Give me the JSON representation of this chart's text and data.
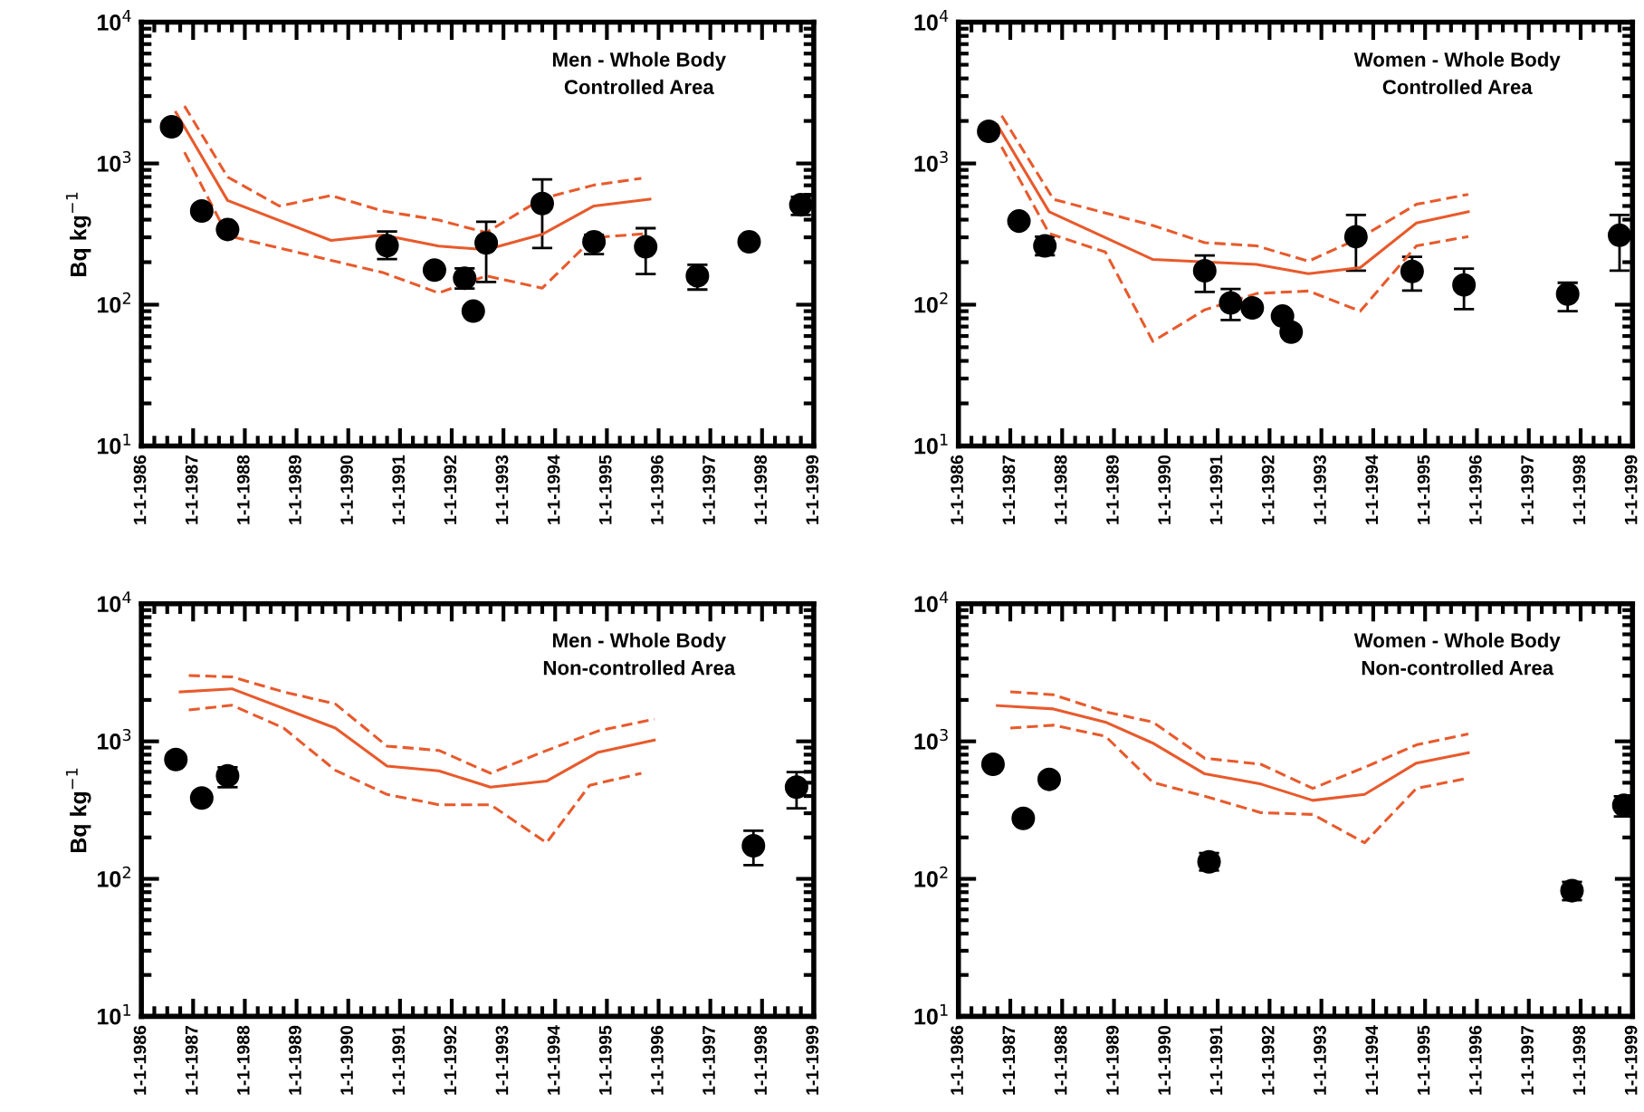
{
  "chart_data": [
    {
      "type": "scatter",
      "title": "Men - Whole Body\nControlled Area",
      "ylabel": "Bq kg$^{−1}$",
      "log": "y",
      "xlim": [
        "1986-01-01",
        "1999-01-01"
      ],
      "ylim": [
        10,
        10000
      ],
      "xticks": [
        {
          "value": "1986-01-01",
          "label": "1-1-1986"
        },
        {
          "value": "1987-01-01",
          "label": "1-1-1987"
        },
        {
          "value": "1988-01-01",
          "label": "1-1-1988"
        },
        {
          "value": "1989-01-01",
          "label": "1-1-1989"
        },
        {
          "value": "1990-01-01",
          "label": "1-1-1990"
        },
        {
          "value": "1991-01-01",
          "label": "1-1-1991"
        },
        {
          "value": "1992-01-01",
          "label": "1-1-1992"
        },
        {
          "value": "1993-01-01",
          "label": "1-1-1993"
        },
        {
          "value": "1994-01-01",
          "label": "1-1-1994"
        },
        {
          "value": "1995-01-01",
          "label": "1-1-1995"
        },
        {
          "value": "1996-01-01",
          "label": "1-1-1996"
        },
        {
          "value": "1997-01-01",
          "label": "1-1-1997"
        },
        {
          "value": "1998-01-01",
          "label": "1-1-1998"
        },
        {
          "value": "1999-01-01",
          "label": "1-1-1999"
        }
      ],
      "yticks": [
        {
          "value": 10,
          "label": "10$^{1}$"
        },
        {
          "value": 100,
          "label": "10$^{2}$"
        },
        {
          "value": 1000,
          "label": "10$^{3}$"
        },
        {
          "value": 10000,
          "label": "10$^{4}$"
        }
      ],
      "series": [
        {
          "marker": "circle",
          "color": "#000000",
          "x": [
            "1986-08",
            "1987-03",
            "1987-09",
            "1990-10",
            "1991-09",
            "1992-04",
            "1992-06",
            "1992-09",
            "1993-10",
            "1994-10",
            "1995-10",
            "1996-10",
            "1997-10",
            "1998-10"
          ],
          "values": [
            1820,
            461,
            341,
            262,
            176,
            154,
            90,
            274,
            520,
            279,
            257,
            160,
            279,
            510
          ],
          "errors": [
            null,
            null,
            null,
            [
              210,
              330
            ],
            null,
            [
              130,
              181
            ],
            null,
            [
              145,
              387
            ],
            [
              252,
              770
            ],
            [
              228,
              312
            ],
            [
              165,
              348
            ],
            [
              128,
              192
            ],
            null,
            [
              432,
              580
            ]
          ]
        },
        {
          "type": "line",
          "line_style": "solid",
          "color": "#e85a2c",
          "x": [
            "1986-09",
            "1987-09",
            "1989-09",
            "1990-09",
            "1991-10",
            "1992-09",
            "1993-10",
            "1994-10",
            "1995-11"
          ],
          "values": [
            2300,
            547,
            285,
            311,
            260,
            245,
            315,
            500,
            558
          ]
        },
        {
          "type": "line",
          "line_style": "dashed",
          "color": "#e85a2c",
          "x": [
            "1986-11",
            "1987-09",
            "1988-09",
            "1989-09",
            "1990-09",
            "1991-10",
            "1992-09",
            "1993-10",
            "1994-10",
            "1995-09"
          ],
          "values": [
            2550,
            802,
            500,
            593,
            461,
            397,
            324,
            564,
            703,
            785
          ]
        },
        {
          "type": "line",
          "line_style": "dashed",
          "color": "#e85a2c",
          "x": [
            "1986-11",
            "1987-09",
            "1989-09",
            "1990-09",
            "1991-10",
            "1992-09",
            "1993-10",
            "1994-10",
            "1995-10"
          ],
          "values": [
            1200,
            308,
            206,
            169,
            121,
            160,
            131,
            299,
            318
          ]
        }
      ]
    },
    {
      "type": "scatter",
      "title": "Women - Whole Body\nControlled Area",
      "log": "y",
      "xlim": [
        "1986-01-01",
        "1999-01-01"
      ],
      "ylim": [
        10,
        10000
      ],
      "xticks": [
        {
          "value": "1986-01-01",
          "label": "1-1-1986"
        },
        {
          "value": "1987-01-01",
          "label": "1-1-1987"
        },
        {
          "value": "1988-01-01",
          "label": "1-1-1988"
        },
        {
          "value": "1989-01-01",
          "label": "1-1-1989"
        },
        {
          "value": "1990-01-01",
          "label": "1-1-1990"
        },
        {
          "value": "1991-01-01",
          "label": "1-1-1991"
        },
        {
          "value": "1992-01-01",
          "label": "1-1-1992"
        },
        {
          "value": "1993-01-01",
          "label": "1-1-1993"
        },
        {
          "value": "1994-01-01",
          "label": "1-1-1994"
        },
        {
          "value": "1995-01-01",
          "label": "1-1-1995"
        },
        {
          "value": "1996-01-01",
          "label": "1-1-1996"
        },
        {
          "value": "1997-01-01",
          "label": "1-1-1997"
        },
        {
          "value": "1998-01-01",
          "label": "1-1-1998"
        },
        {
          "value": "1999-01-01",
          "label": "1-1-1999"
        }
      ],
      "yticks": [
        {
          "value": 10,
          "label": "10$^{1}$"
        },
        {
          "value": 100,
          "label": "10$^{2}$"
        },
        {
          "value": 1000,
          "label": "10$^{3}$"
        },
        {
          "value": 10000,
          "label": "10$^{4}$"
        }
      ],
      "series": [
        {
          "marker": "circle",
          "color": "#000000",
          "x": [
            "1986-08",
            "1987-03",
            "1987-09",
            "1990-10",
            "1991-04",
            "1991-09",
            "1992-04",
            "1992-06",
            "1993-09",
            "1994-10",
            "1995-10",
            "1997-10",
            "1998-10"
          ],
          "values": [
            1690,
            391,
            261,
            174,
            103,
            95,
            83,
            64,
            303,
            172,
            138,
            119,
            310
          ],
          "errors": [
            null,
            null,
            [
              224,
              303
            ],
            [
              123,
              223
            ],
            [
              78,
              129
            ],
            null,
            null,
            null,
            [
              174,
              432
            ],
            [
              126,
              218
            ],
            [
              93,
              180
            ],
            [
              90,
              143
            ],
            [
              174,
              432
            ]
          ]
        },
        {
          "type": "line",
          "line_style": "solid",
          "color": "#e85a2c",
          "x": [
            "1986-10",
            "1987-10",
            "1989-10",
            "1991-10",
            "1992-10",
            "1993-10",
            "1994-11",
            "1995-11"
          ],
          "values": [
            1870,
            455,
            209,
            193,
            166,
            183,
            379,
            455
          ]
        },
        {
          "type": "line",
          "line_style": "dashed",
          "color": "#e85a2c",
          "x": [
            "1986-11",
            "1987-11",
            "1989-10",
            "1990-10",
            "1991-10",
            "1992-10",
            "1993-10",
            "1994-11",
            "1995-11"
          ],
          "values": [
            2180,
            557,
            364,
            275,
            261,
            203,
            298,
            514,
            604
          ]
        },
        {
          "type": "line",
          "line_style": "dashed",
          "color": "#e85a2c",
          "x": [
            "1986-11",
            "1987-10",
            "1988-11",
            "1989-10",
            "1990-10",
            "1991-10",
            "1992-10",
            "1993-10",
            "1994-11",
            "1995-11"
          ],
          "values": [
            1310,
            319,
            236,
            55,
            92,
            120,
            125,
            90,
            261,
            304
          ]
        }
      ]
    },
    {
      "type": "scatter",
      "title": "Men - Whole Body\nNon-controlled Area",
      "ylabel": "Bq kg$^{−1}$",
      "log": "y",
      "xlim": [
        "1986-01-01",
        "1999-01-01"
      ],
      "ylim": [
        10,
        10000
      ],
      "xticks": [
        {
          "value": "1986-01-01",
          "label": "1-1-1986"
        },
        {
          "value": "1987-01-01",
          "label": "1-1-1987"
        },
        {
          "value": "1988-01-01",
          "label": "1-1-1988"
        },
        {
          "value": "1989-01-01",
          "label": "1-1-1989"
        },
        {
          "value": "1990-01-01",
          "label": "1-1-1990"
        },
        {
          "value": "1991-01-01",
          "label": "1-1-1991"
        },
        {
          "value": "1992-01-01",
          "label": "1-1-1992"
        },
        {
          "value": "1993-01-01",
          "label": "1-1-1993"
        },
        {
          "value": "1994-01-01",
          "label": "1-1-1994"
        },
        {
          "value": "1995-01-01",
          "label": "1-1-1995"
        },
        {
          "value": "1996-01-01",
          "label": "1-1-1996"
        },
        {
          "value": "1997-01-01",
          "label": "1-1-1997"
        },
        {
          "value": "1998-01-01",
          "label": "1-1-1998"
        },
        {
          "value": "1999-01-01",
          "label": "1-1-1999"
        }
      ],
      "yticks": [
        {
          "value": 10,
          "label": "10$^{1}$"
        },
        {
          "value": 100,
          "label": "10$^{2}$"
        },
        {
          "value": 1000,
          "label": "10$^{3}$"
        },
        {
          "value": 10000,
          "label": "10$^{4}$"
        }
      ],
      "series": [
        {
          "marker": "circle",
          "color": "#000000",
          "x": [
            "1986-09",
            "1987-03",
            "1987-09",
            "1997-11",
            "1998-09"
          ],
          "values": [
            738,
            387,
            562,
            174,
            464
          ],
          "errors": [
            null,
            null,
            [
              464,
              647
            ],
            [
              126,
              224
            ],
            [
              326,
              597
            ]
          ]
        },
        {
          "type": "line",
          "line_style": "solid",
          "color": "#e85a2c",
          "x": [
            "1986-10",
            "1987-10",
            "1989-10",
            "1990-10",
            "1991-10",
            "1992-10",
            "1993-11",
            "1994-11",
            "1995-12"
          ],
          "values": [
            2290,
            2410,
            1250,
            661,
            610,
            464,
            514,
            834,
            1020
          ]
        },
        {
          "type": "line",
          "line_style": "dashed",
          "color": "#e85a2c",
          "x": [
            "1986-12",
            "1987-10",
            "1988-10",
            "1989-10",
            "1990-10",
            "1991-10",
            "1992-10",
            "1993-10",
            "1994-11",
            "1995-12"
          ],
          "values": [
            3010,
            2940,
            2290,
            1870,
            923,
            859,
            586,
            834,
            1190,
            1450
          ]
        },
        {
          "type": "line",
          "line_style": "dashed",
          "color": "#e85a2c",
          "x": [
            "1986-12",
            "1987-10",
            "1988-10",
            "1989-10",
            "1990-10",
            "1991-10",
            "1992-10",
            "1993-11",
            "1994-09",
            "1995-09"
          ],
          "values": [
            1690,
            1830,
            1250,
            616,
            411,
            346,
            346,
            183,
            479,
            586
          ]
        }
      ]
    },
    {
      "type": "scatter",
      "title": "Women - Whole Body\nNon-controlled Area",
      "log": "y",
      "xlim": [
        "1986-01-01",
        "1999-01-01"
      ],
      "ylim": [
        10,
        10000
      ],
      "xticks": [
        {
          "value": "1986-01-01",
          "label": "1-1-1986"
        },
        {
          "value": "1987-01-01",
          "label": "1-1-1987"
        },
        {
          "value": "1988-01-01",
          "label": "1-1-1988"
        },
        {
          "value": "1989-01-01",
          "label": "1-1-1989"
        },
        {
          "value": "1990-01-01",
          "label": "1-1-1990"
        },
        {
          "value": "1991-01-01",
          "label": "1-1-1991"
        },
        {
          "value": "1992-01-01",
          "label": "1-1-1992"
        },
        {
          "value": "1993-01-01",
          "label": "1-1-1993"
        },
        {
          "value": "1994-01-01",
          "label": "1-1-1994"
        },
        {
          "value": "1995-01-01",
          "label": "1-1-1995"
        },
        {
          "value": "1996-01-01",
          "label": "1-1-1996"
        },
        {
          "value": "1997-01-01",
          "label": "1-1-1997"
        },
        {
          "value": "1998-01-01",
          "label": "1-1-1998"
        },
        {
          "value": "1999-01-01",
          "label": "1-1-1999"
        }
      ],
      "yticks": [
        {
          "value": 10,
          "label": "10$^{1}$"
        },
        {
          "value": 100,
          "label": "10$^{2}$"
        },
        {
          "value": 1000,
          "label": "10$^{3}$"
        },
        {
          "value": 10000,
          "label": "10$^{4}$"
        }
      ],
      "series": [
        {
          "marker": "circle",
          "color": "#000000",
          "x": [
            "1986-09",
            "1987-04",
            "1987-10",
            "1990-11",
            "1997-11",
            "1998-11"
          ],
          "values": [
            681,
            275,
            529,
            133,
            82,
            343
          ],
          "errors": [
            null,
            null,
            null,
            [
              115,
              154
            ],
            [
              70,
              95
            ],
            [
              284,
              399
            ]
          ]
        },
        {
          "type": "line",
          "line_style": "solid",
          "color": "#e85a2c",
          "x": [
            "1986-10",
            "1987-11",
            "1988-11",
            "1989-10",
            "1990-10",
            "1991-11",
            "1992-11",
            "1993-11",
            "1994-11",
            "1995-11"
          ],
          "values": [
            1820,
            1720,
            1380,
            970,
            580,
            489,
            372,
            411,
            695,
            826
          ]
        },
        {
          "type": "line",
          "line_style": "dashed",
          "color": "#e85a2c",
          "x": [
            "1987-01",
            "1987-11",
            "1988-11",
            "1989-10",
            "1990-10",
            "1991-11",
            "1992-11",
            "1993-11",
            "1994-11",
            "1995-11"
          ],
          "values": [
            2290,
            2180,
            1640,
            1380,
            753,
            681,
            455,
            647,
            942,
            1130
          ]
        },
        {
          "type": "line",
          "line_style": "dashed",
          "color": "#e85a2c",
          "x": [
            "1987-01",
            "1987-11",
            "1988-11",
            "1989-10",
            "1990-10",
            "1991-11",
            "1992-11",
            "1993-11",
            "1994-11",
            "1995-11"
          ],
          "values": [
            1250,
            1310,
            1090,
            503,
            399,
            303,
            294,
            183,
            455,
            540
          ]
        }
      ]
    }
  ]
}
